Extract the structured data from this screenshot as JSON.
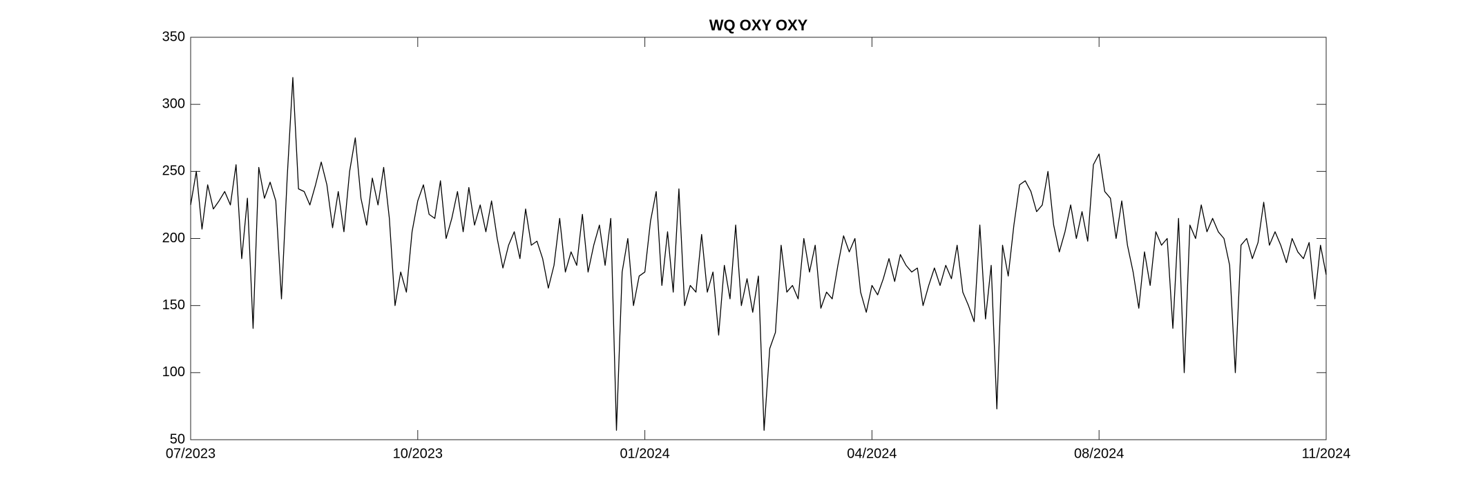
{
  "chart_data": {
    "type": "line",
    "title": "WQ OXY OXY",
    "series": [
      {
        "name": "OXY",
        "color": "#000000",
        "values": [
          225,
          250,
          207,
          240,
          222,
          228,
          235,
          225,
          255,
          185,
          230,
          133,
          253,
          230,
          242,
          228,
          155,
          245,
          320,
          237,
          235,
          225,
          240,
          257,
          240,
          208,
          235,
          205,
          250,
          275,
          230,
          210,
          245,
          225,
          253,
          215,
          150,
          175,
          160,
          205,
          228,
          240,
          218,
          215,
          243,
          200,
          215,
          235,
          205,
          238,
          210,
          225,
          205,
          228,
          200,
          178,
          195,
          205,
          185,
          222,
          195,
          198,
          185,
          163,
          180,
          215,
          175,
          190,
          180,
          218,
          175,
          195,
          210,
          180,
          215,
          57,
          175,
          200,
          150,
          172,
          175,
          213,
          235,
          165,
          205,
          160,
          237,
          150,
          165,
          160,
          203,
          160,
          175,
          128,
          180,
          155,
          210,
          150,
          170,
          145,
          172,
          57,
          118,
          130,
          195,
          160,
          165,
          155,
          200,
          175,
          195,
          148,
          160,
          155,
          180,
          202,
          190,
          200,
          160,
          145,
          165,
          158,
          170,
          185,
          168,
          188,
          180,
          175,
          178,
          150,
          165,
          178,
          165,
          180,
          170,
          195,
          160,
          150,
          138,
          210,
          140,
          180,
          73,
          195,
          172,
          210,
          240,
          243,
          235,
          220,
          225,
          250,
          210,
          190,
          205,
          225,
          200,
          220,
          198,
          255,
          263,
          235,
          230,
          200,
          228,
          195,
          175,
          148,
          190,
          165,
          205,
          195,
          200,
          133,
          215,
          100,
          210,
          200,
          225,
          205,
          215,
          205,
          200,
          180,
          100,
          195,
          200,
          185,
          197,
          227,
          195,
          205,
          195,
          182,
          200,
          190,
          185,
          197,
          155,
          195,
          173
        ]
      }
    ],
    "xlim": [
      0,
      200
    ],
    "xticks": [
      {
        "value": 0,
        "label": "07/2023"
      },
      {
        "value": 40,
        "label": "10/2023"
      },
      {
        "value": 80,
        "label": "01/2024"
      },
      {
        "value": 120,
        "label": "04/2024"
      },
      {
        "value": 160,
        "label": "08/2024"
      },
      {
        "value": 200,
        "label": "11/2024"
      }
    ],
    "ylim": [
      50,
      350
    ],
    "yticks": [
      50,
      100,
      150,
      200,
      250,
      300,
      350
    ],
    "grid": false
  }
}
